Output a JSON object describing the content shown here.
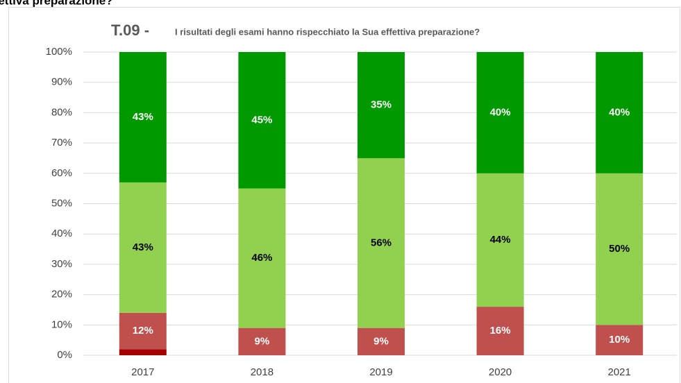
{
  "caption": "ffettiva preparazione?",
  "chart_data": {
    "type": "stacked_bar",
    "title_code": "T.09 -",
    "title": "I risultati degli esami hanno rispecchiato la Sua effettiva preparazione?",
    "categories": [
      "2017",
      "2018",
      "2019",
      "2020",
      "2021"
    ],
    "series": [
      {
        "color": "#a50000",
        "values": [
          2,
          0,
          0,
          0,
          0
        ]
      },
      {
        "color": "#c0504d",
        "label_color": "#ffffff",
        "values": [
          12,
          9,
          9,
          16,
          10
        ],
        "value_labels": [
          "12%",
          "9%",
          "9%",
          "16%",
          "10%"
        ]
      },
      {
        "color": "#92d050",
        "label_color": "#000000",
        "values": [
          43,
          46,
          56,
          44,
          50
        ],
        "value_labels": [
          "43%",
          "46%",
          "56%",
          "44%",
          "50%"
        ]
      },
      {
        "color": "#009a00",
        "label_color": "#ffffff",
        "values": [
          43,
          45,
          35,
          40,
          40
        ],
        "value_labels": [
          "43%",
          "45%",
          "35%",
          "40%",
          "40%"
        ]
      }
    ],
    "ylim": [
      0,
      100
    ],
    "yticks": [
      {
        "value": 0,
        "label": "0%"
      },
      {
        "value": 10,
        "label": "10%"
      },
      {
        "value": 20,
        "label": "20%"
      },
      {
        "value": 30,
        "label": "30%"
      },
      {
        "value": 40,
        "label": "40%"
      },
      {
        "value": 50,
        "label": "50%"
      },
      {
        "value": 60,
        "label": "60%"
      },
      {
        "value": 70,
        "label": "70%"
      },
      {
        "value": 80,
        "label": "80%"
      },
      {
        "value": 90,
        "label": "90%"
      },
      {
        "value": 100,
        "label": "100%"
      }
    ],
    "grid": true
  }
}
